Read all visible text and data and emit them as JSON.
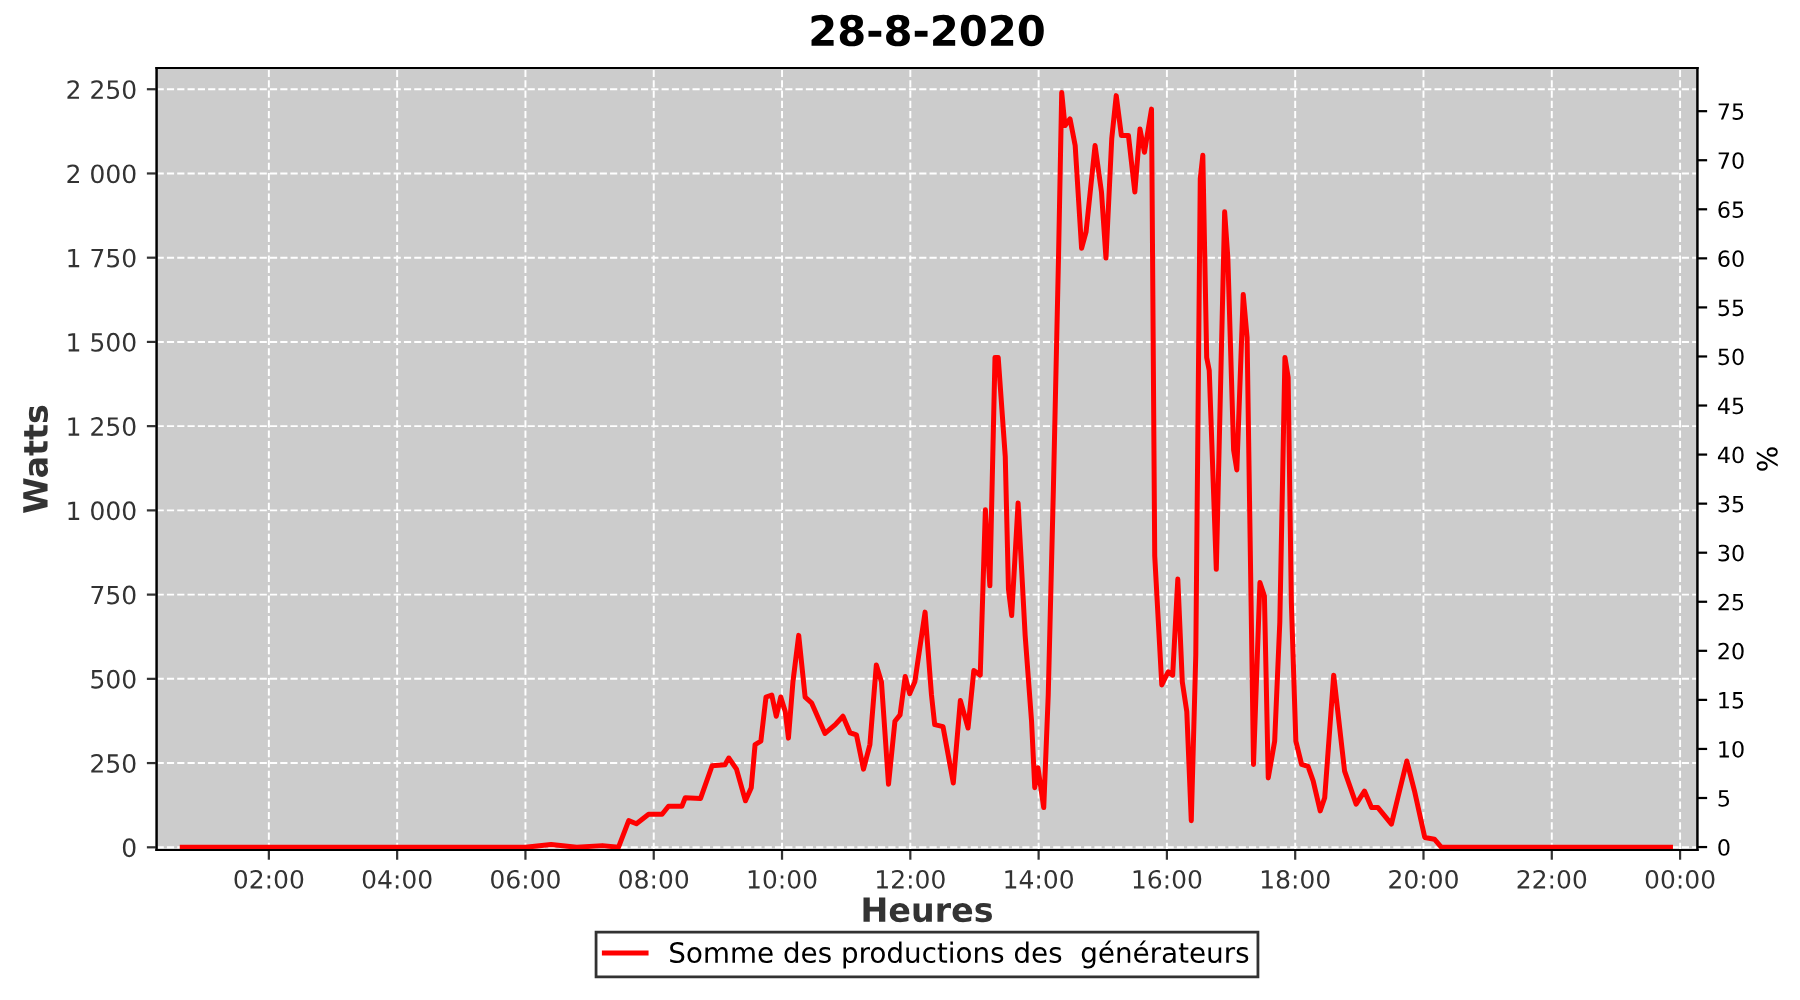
{
  "chart_data": {
    "type": "line",
    "title": "28-8-2020",
    "xlabel": "Heures",
    "ylabel": "Watts",
    "y2label": "%",
    "xlim": [
      0.25,
      24.27
    ],
    "xticks": [
      {
        "value": 2,
        "label": "02:00"
      },
      {
        "value": 4,
        "label": "04:00"
      },
      {
        "value": 6,
        "label": "06:00"
      },
      {
        "value": 8,
        "label": "08:00"
      },
      {
        "value": 10,
        "label": "10:00"
      },
      {
        "value": 12,
        "label": "12:00"
      },
      {
        "value": 14,
        "label": "14:00"
      },
      {
        "value": 16,
        "label": "16:00"
      },
      {
        "value": 18,
        "label": "18:00"
      },
      {
        "value": 20,
        "label": "20:00"
      },
      {
        "value": 22,
        "label": "22:00"
      },
      {
        "value": 24,
        "label": "00:00"
      }
    ],
    "ylim": [
      -8,
      2313
    ],
    "yticks": [
      0,
      250,
      500,
      750,
      {
        "value": 1000,
        "label": "1 000"
      },
      {
        "value": 1250,
        "label": "1 250"
      },
      {
        "value": 1500,
        "label": "1 500"
      },
      {
        "value": 1750,
        "label": "1 750"
      },
      {
        "value": 2000,
        "label": "2 000"
      },
      {
        "value": 2250,
        "label": "2 250"
      }
    ],
    "y2lim": [
      -0.3,
      79.4
    ],
    "y2ticks": [
      0,
      5,
      10,
      15,
      20,
      25,
      30,
      35,
      40,
      45,
      50,
      55,
      60,
      65,
      70,
      75
    ],
    "grid": true,
    "legend": "bottom",
    "line_style": "solid",
    "series": [
      {
        "name": "Somme des productions des  générateurs",
        "color": "#ff0000",
        "x": [
          0.65,
          2.0,
          4.0,
          6.0,
          6.4,
          6.8,
          7.2,
          7.45,
          7.61,
          7.73,
          7.92,
          8.13,
          8.23,
          8.44,
          8.49,
          8.73,
          8.91,
          9.11,
          9.17,
          9.29,
          9.43,
          9.52,
          9.58,
          9.67,
          9.75,
          9.84,
          9.91,
          9.98,
          10.05,
          10.1,
          10.17,
          10.26,
          10.36,
          10.46,
          10.67,
          10.83,
          10.95,
          11.06,
          11.16,
          11.27,
          11.37,
          11.47,
          11.55,
          11.66,
          11.76,
          11.84,
          11.92,
          11.99,
          12.07,
          12.23,
          12.33,
          12.38,
          12.51,
          12.67,
          12.78,
          12.9,
          12.99,
          13.09,
          13.17,
          13.24,
          13.32,
          13.37,
          13.48,
          13.53,
          13.58,
          13.68,
          13.79,
          13.89,
          13.94,
          13.99,
          14.08,
          14.15,
          14.23,
          14.31,
          14.36,
          14.41,
          14.49,
          14.57,
          14.67,
          14.74,
          14.88,
          14.98,
          15.05,
          15.14,
          15.21,
          15.29,
          15.4,
          15.5,
          15.58,
          15.65,
          15.76,
          15.81,
          15.92,
          16.02,
          16.09,
          16.17,
          16.24,
          16.31,
          16.38,
          16.45,
          16.52,
          16.56,
          16.62,
          16.66,
          16.77,
          16.9,
          16.95,
          17.04,
          17.09,
          17.19,
          17.25,
          17.35,
          17.45,
          17.52,
          17.58,
          17.68,
          17.76,
          17.84,
          17.89,
          17.94,
          18.01,
          18.1,
          18.2,
          18.28,
          18.39,
          18.46,
          18.6,
          18.67,
          18.77,
          18.95,
          19.08,
          19.19,
          19.29,
          19.5,
          19.6,
          19.74,
          19.86,
          20.02,
          20.17,
          20.28,
          21.0,
          22.0,
          23.0,
          23.85
        ],
        "values": [
          0,
          0,
          0,
          0,
          8,
          0,
          5,
          0,
          79,
          70,
          98,
          98,
          122,
          122,
          147,
          145,
          242,
          245,
          265,
          232,
          138,
          177,
          305,
          315,
          446,
          452,
          389,
          446,
          403,
          324,
          491,
          629,
          446,
          429,
          338,
          364,
          389,
          340,
          334,
          232,
          305,
          541,
          491,
          187,
          374,
          393,
          507,
          456,
          491,
          698,
          452,
          364,
          358,
          191,
          436,
          354,
          525,
          511,
          1002,
          776,
          1454,
          1454,
          1160,
          766,
          688,
          1022,
          629,
          374,
          177,
          236,
          118,
          452,
          1061,
          1749,
          2240,
          2142,
          2162,
          2083,
          1778,
          1827,
          2083,
          1945,
          1749,
          2103,
          2231,
          2113,
          2113,
          1945,
          2132,
          2063,
          2191,
          865,
          482,
          521,
          511,
          796,
          491,
          403,
          79,
          570,
          1984,
          2054,
          1454,
          1415,
          825,
          1886,
          1749,
          1179,
          1120,
          1641,
          1513,
          246,
          786,
          746,
          206,
          315,
          668,
          1454,
          1395,
          727,
          315,
          246,
          240,
          197,
          108,
          147,
          511,
          393,
          226,
          128,
          167,
          118,
          118,
          69,
          147,
          256,
          167,
          29,
          24,
          0,
          0,
          0,
          0,
          0
        ]
      }
    ]
  }
}
